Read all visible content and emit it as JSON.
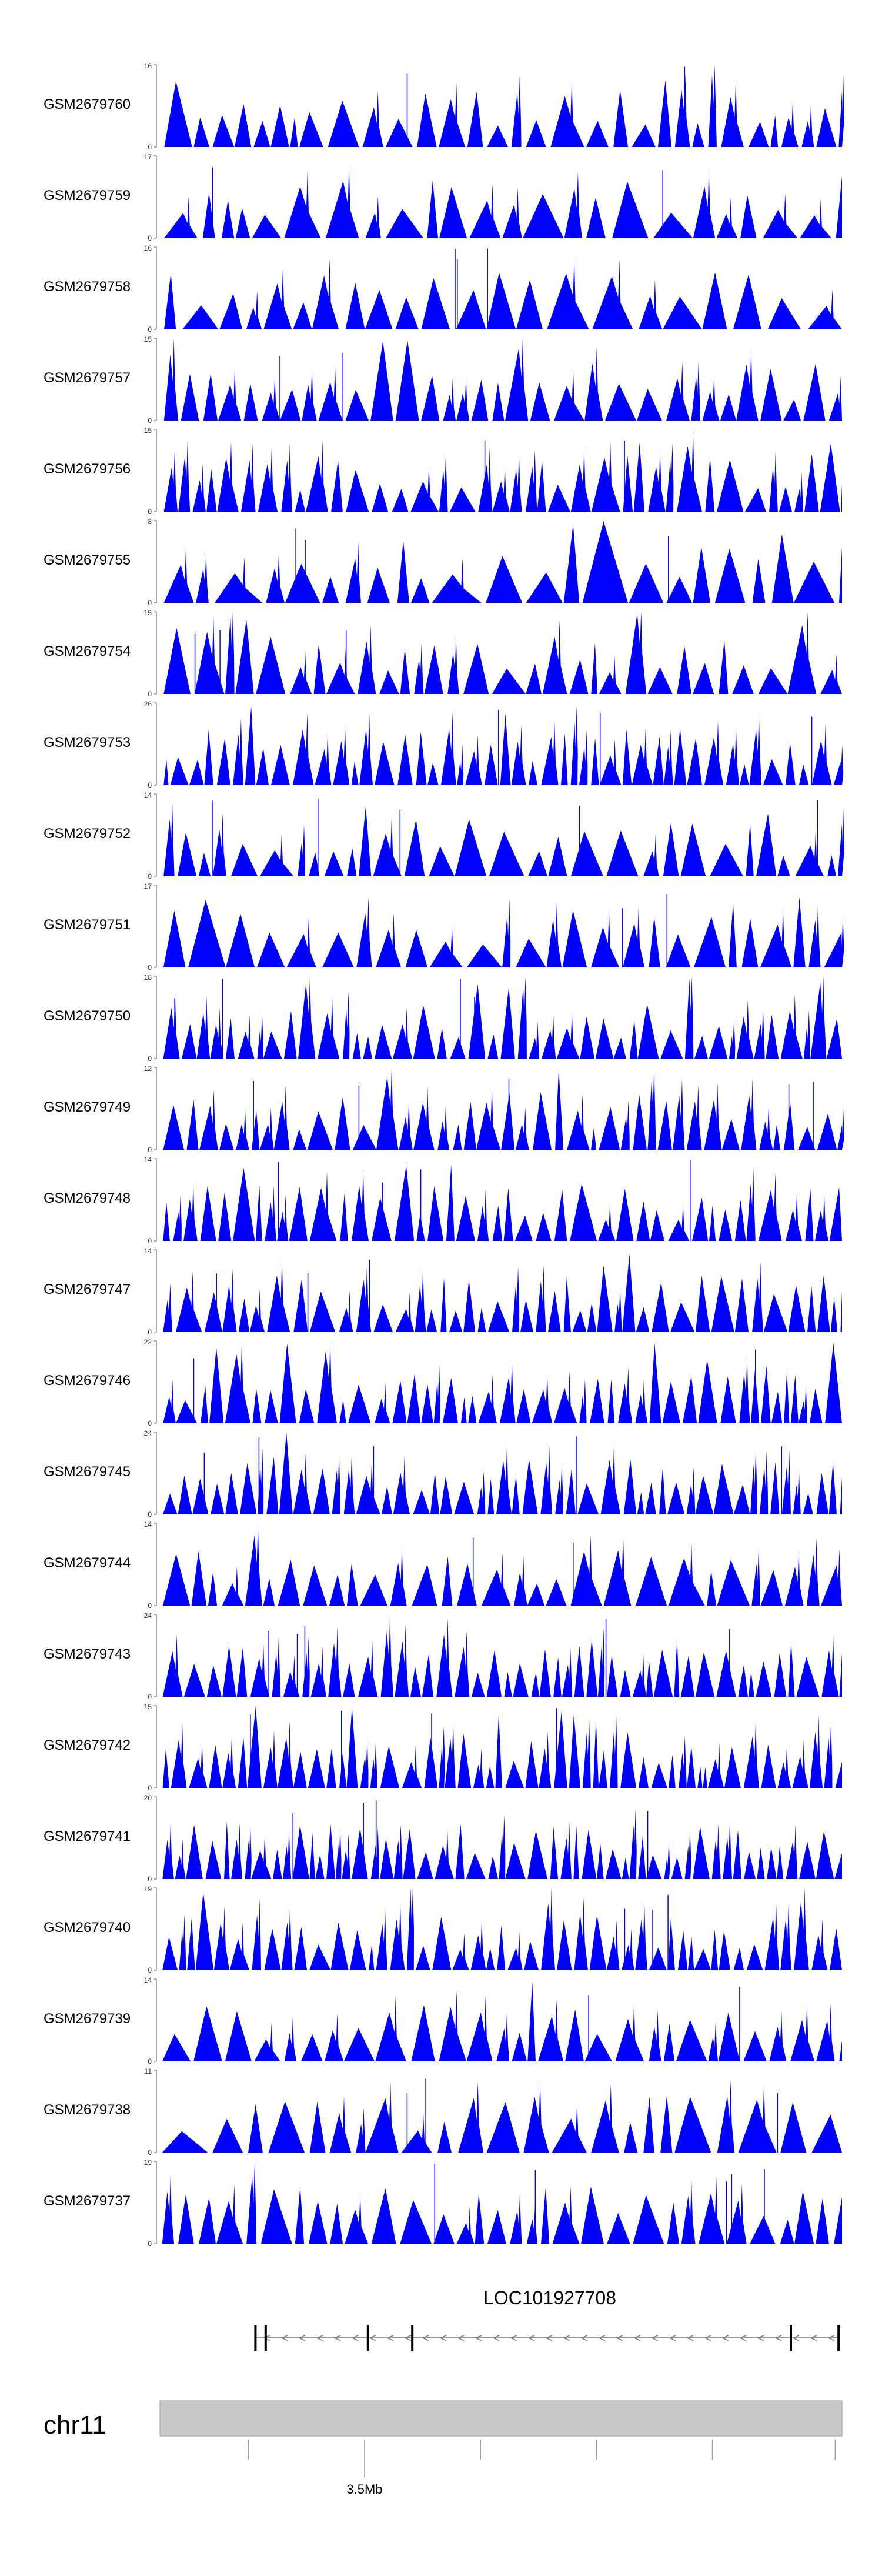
{
  "chart_data": {
    "type": "area",
    "description_tracks": "genomic coverage tracks",
    "series_color": "#0000ff",
    "tracks": [
      {
        "name": "GSM2679760",
        "ymax": 16,
        "ymin": 0,
        "density": 55,
        "seed": 7601
      },
      {
        "name": "GSM2679759",
        "ymax": 17,
        "ymin": 0,
        "density": 40,
        "seed": 7592
      },
      {
        "name": "GSM2679758",
        "ymax": 16,
        "ymin": 0,
        "density": 38,
        "seed": 7583
      },
      {
        "name": "GSM2679757",
        "ymax": 15,
        "ymin": 0,
        "density": 58,
        "seed": 7574
      },
      {
        "name": "GSM2679756",
        "ymax": 15,
        "ymin": 0,
        "density": 62,
        "seed": 7565
      },
      {
        "name": "GSM2679755",
        "ymax": 8,
        "ymin": 0,
        "density": 35,
        "seed": 7556
      },
      {
        "name": "GSM2679754",
        "ymax": 15,
        "ymin": 0,
        "density": 55,
        "seed": 7547
      },
      {
        "name": "GSM2679753",
        "ymax": 26,
        "ymin": 0,
        "density": 75,
        "seed": 7538
      },
      {
        "name": "GSM2679752",
        "ymax": 14,
        "ymin": 0,
        "density": 52,
        "seed": 7529
      },
      {
        "name": "GSM2679751",
        "ymax": 17,
        "ymin": 0,
        "density": 45,
        "seed": 7510
      },
      {
        "name": "GSM2679750",
        "ymax": 18,
        "ymin": 0,
        "density": 75,
        "seed": 7501
      },
      {
        "name": "GSM2679749",
        "ymax": 12,
        "ymin": 0,
        "density": 70,
        "seed": 7492
      },
      {
        "name": "GSM2679748",
        "ymax": 14,
        "ymin": 0,
        "density": 65,
        "seed": 7483
      },
      {
        "name": "GSM2679747",
        "ymax": 14,
        "ymin": 0,
        "density": 72,
        "seed": 7474
      },
      {
        "name": "GSM2679746",
        "ymax": 22,
        "ymin": 0,
        "density": 70,
        "seed": 7465
      },
      {
        "name": "GSM2679745",
        "ymax": 24,
        "ymin": 0,
        "density": 78,
        "seed": 7456
      },
      {
        "name": "GSM2679744",
        "ymax": 14,
        "ymin": 0,
        "density": 50,
        "seed": 7447
      },
      {
        "name": "GSM2679743",
        "ymax": 24,
        "ymin": 0,
        "density": 80,
        "seed": 7438
      },
      {
        "name": "GSM2679742",
        "ymax": 15,
        "ymin": 0,
        "density": 85,
        "seed": 7429
      },
      {
        "name": "GSM2679741",
        "ymax": 20,
        "ymin": 0,
        "density": 90,
        "seed": 7410
      },
      {
        "name": "GSM2679740",
        "ymax": 19,
        "ymin": 0,
        "density": 85,
        "seed": 7401
      },
      {
        "name": "GSM2679739",
        "ymax": 14,
        "ymin": 0,
        "density": 55,
        "seed": 7392
      },
      {
        "name": "GSM2679738",
        "ymax": 11,
        "ymin": 0,
        "density": 40,
        "seed": 7383
      },
      {
        "name": "GSM2679737",
        "ymax": 19,
        "ymin": 0,
        "density": 55,
        "seed": 7374
      }
    ],
    "gene": {
      "label": "LOC101927708",
      "strand": "-",
      "arrow_glyph": "<",
      "exon_positions": [
        0.14,
        0.155,
        0.305,
        0.37,
        0.925,
        0.995
      ],
      "span": [
        0.14,
        0.995
      ]
    },
    "ideogram": {
      "chromosome": "chr11",
      "fill_color": "#c8c8c8"
    },
    "axis": {
      "ticks": [
        0.13,
        0.3,
        0.47,
        0.64,
        0.81,
        0.99
      ],
      "labeled_tick": {
        "position": 0.3,
        "label": "3.5Mb"
      }
    }
  }
}
